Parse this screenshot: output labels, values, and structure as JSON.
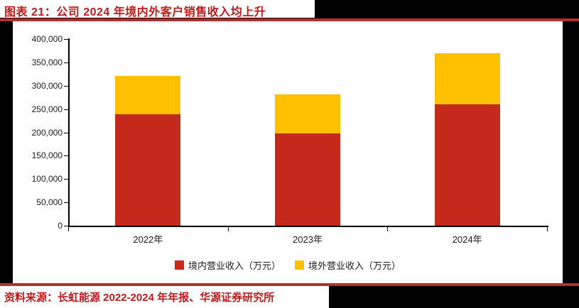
{
  "figure": {
    "title": "图表 21：公司 2024 年境内外客户销售收入均上升",
    "source": "资料来源：长虹能源 2022-2024 年年报、华源证券研究所"
  },
  "colors": {
    "domestic_red": "#c5291c",
    "overseas_gold": "#ffc000",
    "rule_red": "#b03030",
    "heading_red": "#c01919",
    "axis_black": "#000000",
    "page_black": "#000000"
  },
  "chart_data": {
    "type": "bar",
    "stacked": true,
    "title": "公司2024年境内外客户销售收入均上升",
    "categories": [
      "2022年",
      "2023年",
      "2024年"
    ],
    "series": [
      {
        "name": "境内营业收入（万元）",
        "color_key": "domestic_red",
        "values": [
          239000,
          198000,
          259500
        ]
      },
      {
        "name": "境外营业收入（万元）",
        "color_key": "overseas_gold",
        "values": [
          82500,
          83000,
          110500
        ]
      }
    ],
    "xlabel": "",
    "ylabel": "",
    "ylim": [
      0,
      400000
    ],
    "ytick_step": 50000,
    "ytick_labels": [
      "0",
      "50,000",
      "100,000",
      "150,000",
      "200,000",
      "250,000",
      "300,000",
      "350,000",
      "400,000"
    ],
    "grid": false,
    "legend_position": "bottom"
  }
}
